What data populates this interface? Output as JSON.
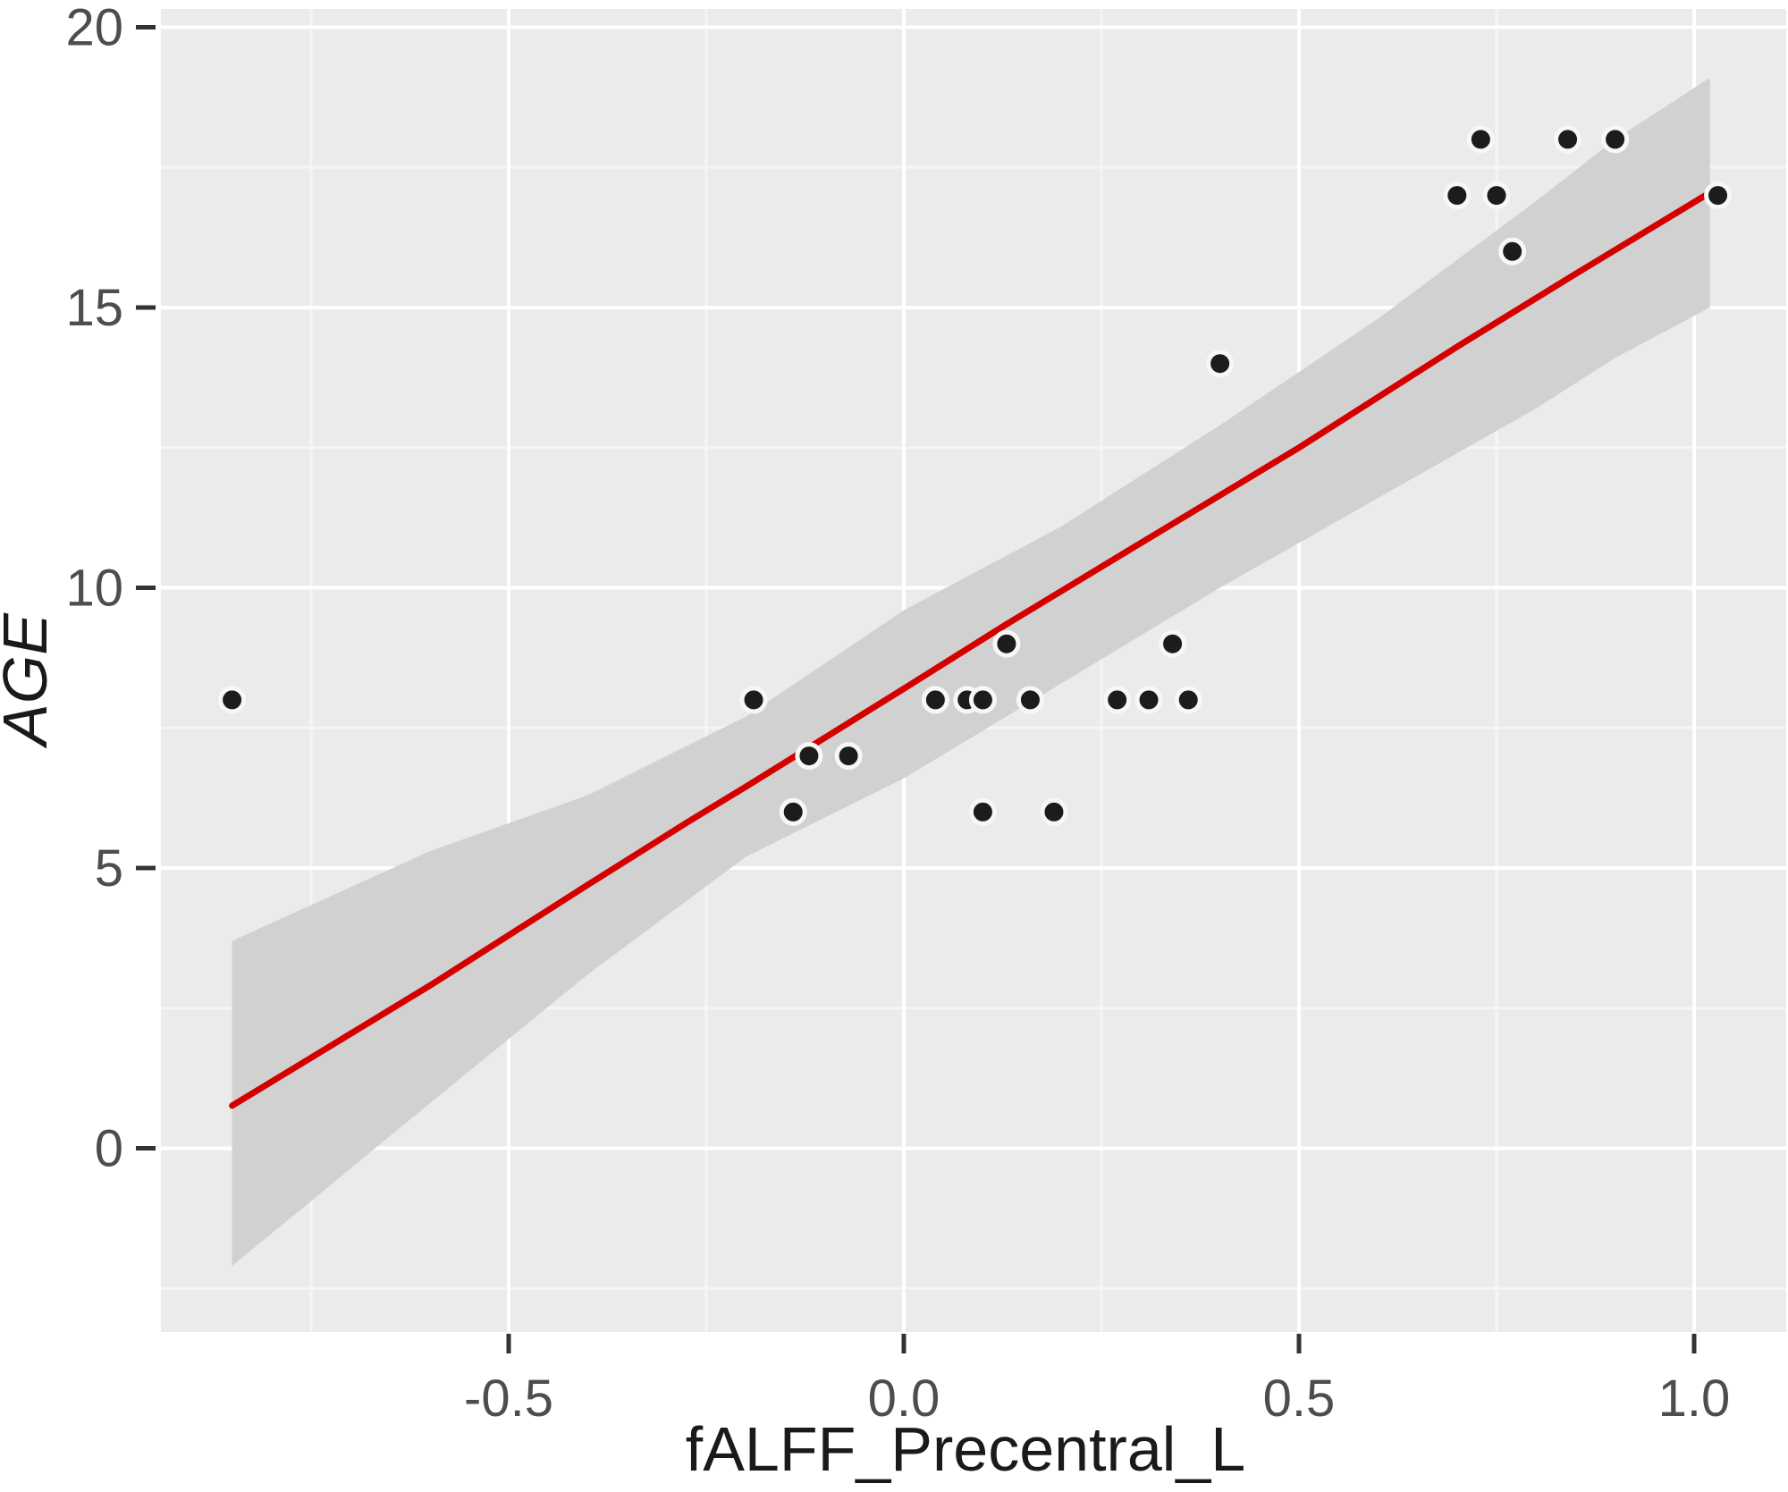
{
  "figure": {
    "kind": "ggplot-style scatter plot with linear fit and confidence band"
  },
  "chart_data": {
    "type": "scatter",
    "title": "",
    "xlabel": "fALFF_Precentral_L",
    "ylabel": "AGE",
    "xlim": [
      -0.94,
      1.12
    ],
    "ylim": [
      -3.3,
      20.3
    ],
    "grid": true,
    "legend_position": "none",
    "x_ticks": [
      -0.5,
      0.0,
      0.5,
      1.0
    ],
    "x_tick_labels": [
      "-0.5",
      "0.0",
      "0.5",
      "1.0"
    ],
    "y_ticks": [
      20,
      15,
      10,
      5,
      0
    ],
    "y_tick_labels": [
      "20",
      "15",
      "10",
      "5",
      "0"
    ],
    "x_minor_ticks": [
      -0.75,
      -0.25,
      0.25,
      0.75
    ],
    "y_minor_ticks": [
      -2.5,
      2.5,
      7.5,
      12.5,
      17.5
    ],
    "points": [
      [
        -0.85,
        8
      ],
      [
        -0.19,
        8
      ],
      [
        -0.14,
        6
      ],
      [
        -0.12,
        7
      ],
      [
        -0.07,
        7
      ],
      [
        0.04,
        8
      ],
      [
        0.08,
        8
      ],
      [
        0.1,
        8
      ],
      [
        0.16,
        8
      ],
      [
        0.1,
        6
      ],
      [
        0.19,
        6
      ],
      [
        0.13,
        9
      ],
      [
        0.34,
        9
      ],
      [
        0.27,
        8
      ],
      [
        0.31,
        8
      ],
      [
        0.36,
        8
      ],
      [
        0.4,
        14
      ],
      [
        0.7,
        17
      ],
      [
        0.75,
        17
      ],
      [
        0.77,
        16
      ],
      [
        0.73,
        18
      ],
      [
        0.84,
        18
      ],
      [
        0.9,
        18
      ],
      [
        1.03,
        17
      ]
    ],
    "trend_line": {
      "points": [
        [
          -0.85,
          0.76
        ],
        [
          -0.6,
          2.9
        ],
        [
          -0.4,
          4.7
        ],
        [
          -0.27,
          5.85
        ],
        [
          -0.2,
          6.45
        ],
        [
          0.0,
          8.2
        ],
        [
          0.13,
          9.35
        ],
        [
          0.3,
          10.8
        ],
        [
          0.5,
          12.5
        ],
        [
          0.7,
          14.3
        ],
        [
          0.85,
          15.6
        ],
        [
          1.02,
          17.05
        ]
      ]
    },
    "ci_band": {
      "x": [
        -0.85,
        -0.6,
        -0.4,
        -0.2,
        0.0,
        0.2,
        0.4,
        0.6,
        0.8,
        0.9,
        1.02
      ],
      "upper": [
        3.7,
        5.3,
        6.3,
        7.7,
        9.6,
        11.1,
        12.9,
        14.8,
        16.9,
        18.0,
        19.1
      ],
      "lower": [
        -2.1,
        0.8,
        3.1,
        5.2,
        6.6,
        8.3,
        10.0,
        11.6,
        13.2,
        14.1,
        15.0
      ]
    },
    "colors": {
      "trend": "#d40000",
      "band": "#d1d1d1",
      "point_fill": "#1c1c1c",
      "point_halo": "#f7f7f7",
      "panel_bg": "#ebebeb",
      "grid_major": "#ffffff",
      "grid_minor": "#f5f5f5",
      "tick_mark": "#333333",
      "tick_text": "#4d4d4d",
      "title_text": "#1a1a1a"
    }
  }
}
